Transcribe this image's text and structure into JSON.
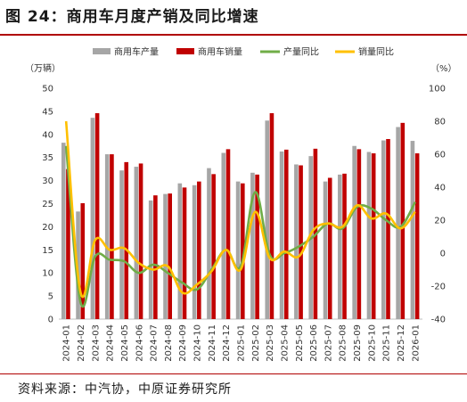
{
  "title": "图 24：商用车月度产销及同比增速",
  "source": "资料来源：中汽协，中原证券研究所",
  "chart_data": {
    "type": "bar",
    "categories": [
      "2024-01",
      "2024-02",
      "2024-03",
      "2024-04",
      "2024-05",
      "2024-06",
      "2024-07",
      "2024-08",
      "2024-09",
      "2024-10",
      "2024-11",
      "2024-12",
      "2025-01",
      "2025-02",
      "2025-03",
      "2025-04",
      "2025-05",
      "2025-06",
      "2025-07",
      "2025-08",
      "2025-09",
      "2025-10",
      "2025-11",
      "2025-12",
      "2026-01"
    ],
    "left_unit": "（万辆）",
    "right_unit": "（%）",
    "ylim_left": [
      0,
      50
    ],
    "ylim_right": [
      -40,
      100
    ],
    "yticks_left": [
      0,
      5,
      10,
      15,
      20,
      25,
      30,
      35,
      40,
      45,
      50
    ],
    "yticks_right": [
      -40,
      -20,
      0,
      20,
      40,
      60,
      80,
      100
    ],
    "legend_position": "top",
    "series": [
      {
        "name": "商用车产量",
        "kind": "bar",
        "axis": "left",
        "color": "#a6a6a6",
        "values": [
          38.2,
          23.3,
          43.6,
          35.7,
          32.2,
          33.0,
          25.7,
          27.1,
          29.4,
          29.0,
          32.7,
          36.0,
          29.8,
          31.7,
          43.0,
          36.3,
          33.5,
          35.3,
          29.8,
          31.3,
          37.5,
          36.2,
          38.7,
          41.6,
          38.6
        ]
      },
      {
        "name": "商用车销量",
        "kind": "bar",
        "axis": "left",
        "color": "#c00000",
        "values": [
          32.5,
          25.1,
          44.6,
          35.7,
          34.0,
          33.7,
          26.8,
          27.2,
          28.5,
          29.8,
          31.4,
          36.8,
          29.4,
          31.3,
          44.6,
          36.7,
          33.3,
          36.9,
          30.6,
          31.5,
          36.8,
          35.9,
          39.0,
          42.5,
          35.9
        ]
      },
      {
        "name": "产量同比",
        "kind": "line",
        "axis": "right",
        "color": "#70ad47",
        "values": [
          65,
          -30,
          -2,
          -4,
          -5,
          -12,
          -7,
          -12,
          -18,
          -22,
          -10,
          2,
          -8,
          37,
          -1,
          0,
          4,
          10,
          18,
          15,
          28,
          27,
          20,
          16,
          31
        ]
      },
      {
        "name": "销量同比",
        "kind": "line",
        "axis": "right",
        "color": "#ffc000",
        "values": [
          80,
          -24,
          8,
          2,
          3,
          -6,
          -10,
          -8,
          -24,
          -19,
          -11,
          2,
          -10,
          25,
          -3,
          1,
          -2,
          14,
          18,
          16,
          29,
          21,
          24,
          15,
          25
        ]
      }
    ]
  }
}
